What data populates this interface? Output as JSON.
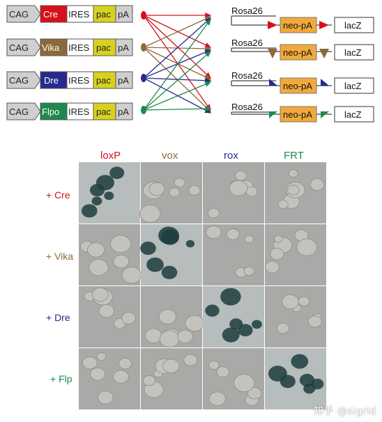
{
  "colors": {
    "cre": "#d8101a",
    "vika": "#8b6a3a",
    "dre": "#262a8e",
    "flpo": "#1d8a4c",
    "pac": "#d6d21f",
    "neo": "#f2a93b",
    "cag": "#cfcfcf",
    "grid_bg": "#aaaaaa",
    "colony": "#1f3d3d"
  },
  "constructs": {
    "promoter": "CAG",
    "ires": "IRES",
    "pac": "pac",
    "pa": "pA",
    "recombinases": [
      "Cre",
      "Vika",
      "Dre",
      "Flpo"
    ]
  },
  "reporters": {
    "locus": "Rosa26",
    "cassette": "neo-pA",
    "gene": "lacZ"
  },
  "grid": {
    "columns": [
      "loxP",
      "vox",
      "rox",
      "FRT"
    ],
    "rows": [
      "+ Cre",
      "+ Vika",
      "+ Dre",
      "+ Flp"
    ]
  },
  "watermark": "知乎 @sigrid"
}
